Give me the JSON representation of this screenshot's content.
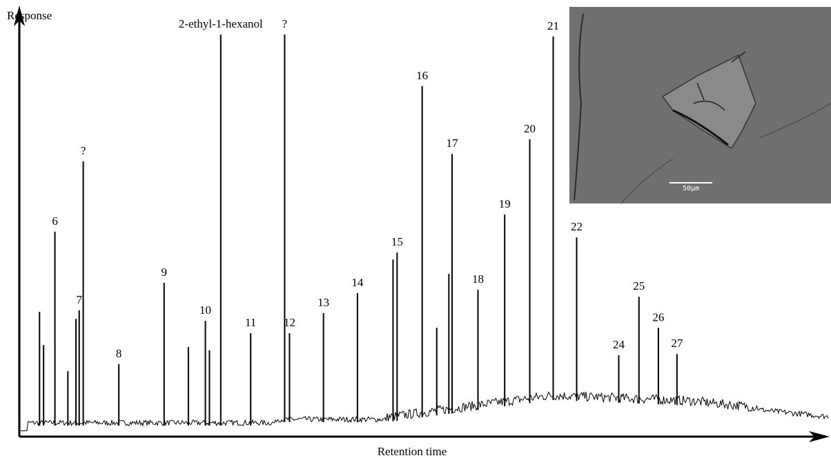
{
  "chart_data": {
    "type": "chromatogram",
    "x_label": "Retention time",
    "y_label": "Response",
    "xlim": [
      0,
      100
    ],
    "ylim": [
      0,
      100
    ],
    "color": "#000000",
    "x": [
      2.5,
      3.0,
      4.4,
      6.0,
      7.0,
      7.4,
      7.9,
      12.3,
      17.9,
      20.9,
      23.0,
      23.5,
      24.9,
      28.6,
      32.8,
      33.4,
      37.6,
      41.8,
      46.2,
      46.7,
      49.8,
      51.6,
      53.1,
      53.5,
      56.7,
      60.0,
      63.1,
      66.0,
      68.9,
      74.1,
      76.6,
      79.0,
      81.3
    ],
    "values": [
      30.5,
      22.4,
      50.1,
      16.0,
      28.8,
      30.9,
      67.3,
      17.7,
      37.6,
      21.9,
      28.3,
      21.1,
      98.3,
      25.3,
      98.3,
      25.3,
      30.2,
      35.1,
      43.3,
      45.0,
      85.7,
      26.6,
      39.8,
      69.1,
      35.9,
      54.3,
      72.7,
      97.8,
      48.7,
      19.9,
      34.2,
      26.6,
      20.2
    ],
    "labels": [
      null,
      null,
      "6",
      null,
      null,
      "7",
      "?",
      "8",
      "9",
      null,
      "10",
      null,
      "2-ethyl-1-hexanol",
      "11",
      "?",
      "12",
      "13",
      "14",
      null,
      "15",
      "16",
      null,
      null,
      "17",
      "18",
      "19",
      "20",
      "21",
      "22",
      "24",
      "25",
      "26",
      "27"
    ]
  },
  "inset": {
    "scale_label": "50µm"
  }
}
